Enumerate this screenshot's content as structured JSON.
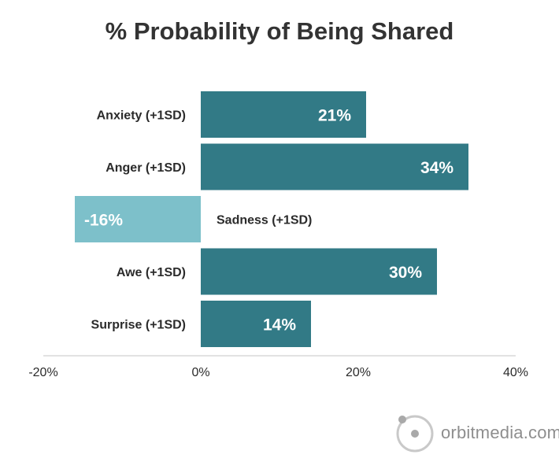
{
  "chart_data": {
    "type": "bar",
    "orientation": "horizontal",
    "title": "% Probability of Being Shared",
    "categories": [
      "Anxiety (+1SD)",
      "Anger (+1SD)",
      "Sadness (+1SD)",
      "Awe (+1SD)",
      "Surprise (+1SD)"
    ],
    "values": [
      21,
      34,
      -16,
      30,
      14
    ],
    "value_labels": [
      "21%",
      "34%",
      "-16%",
      "30%",
      "14%"
    ],
    "xlim": [
      -20,
      40
    ],
    "xticks": [
      -20,
      0,
      20,
      40
    ],
    "xtick_labels": [
      "-20%",
      "0%",
      "20%",
      "40%"
    ],
    "xlabel": "",
    "ylabel": "",
    "grid": false,
    "colors": {
      "positive": "#327a86",
      "negative": "#7dc0ca",
      "axis": "#d9d9d9"
    }
  },
  "watermark": {
    "text": "orbitmedia.com",
    "icon": "orbit-logo-icon"
  }
}
